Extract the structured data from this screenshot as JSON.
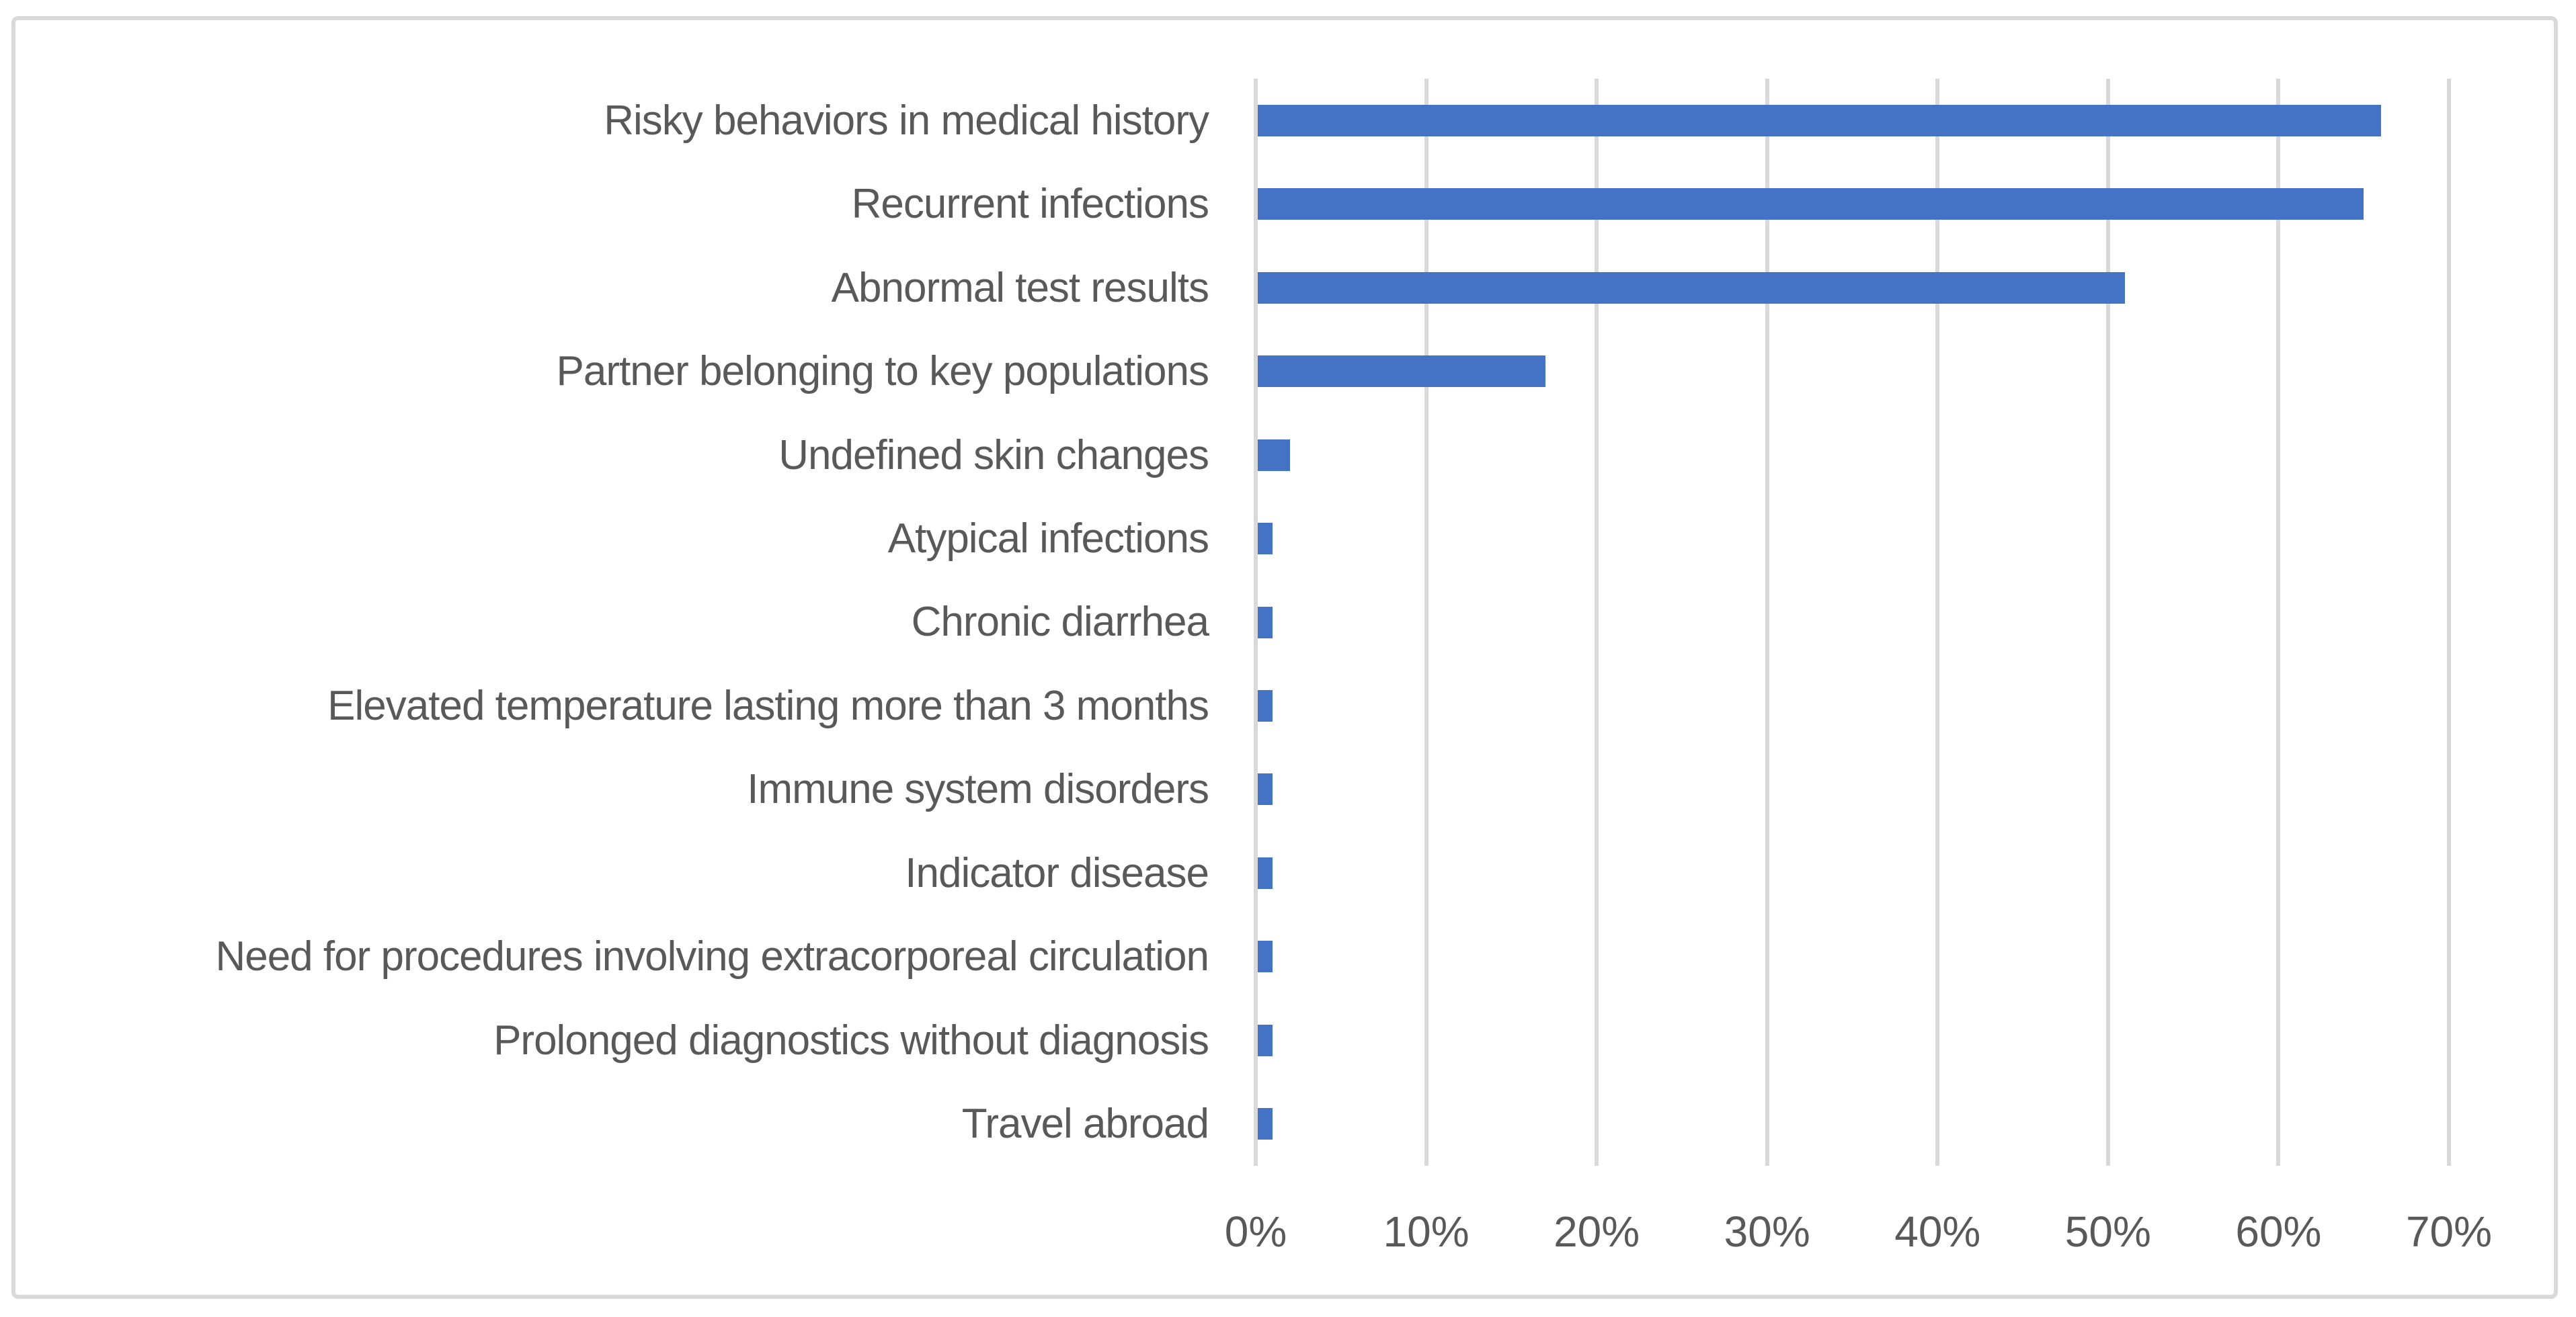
{
  "chart_data": {
    "type": "bar",
    "orientation": "horizontal",
    "title": "",
    "xlabel": "",
    "ylabel": "",
    "categories": [
      "Risky behaviors in medical history",
      "Recurrent infections",
      "Abnormal test results",
      "Partner belonging to key populations",
      "Undefined skin changes",
      "Atypical infections",
      "Chronic diarrhea",
      "Elevated temperature lasting more than 3 months",
      "Immune system disorders",
      "Indicator disease",
      "Need for procedures involving extracorporeal circulation",
      "Prolonged diagnostics without diagnosis",
      "Travel abroad"
    ],
    "values": [
      66,
      65,
      51,
      17,
      2,
      1,
      1,
      1,
      1,
      1,
      1,
      1,
      1
    ],
    "unit": "%",
    "x_ticks": [
      "0%",
      "10%",
      "20%",
      "30%",
      "40%",
      "50%",
      "60%",
      "70%"
    ],
    "x_tick_values": [
      0,
      10,
      20,
      30,
      40,
      50,
      60,
      70
    ],
    "xlim": [
      0,
      76
    ],
    "grid": "vertical-major",
    "legend": "none",
    "colors": {
      "bar": "#4472C4",
      "gridline": "#D9D9D9",
      "frame_border": "#D9D9D9",
      "text": "#595959",
      "background": "#FFFFFF"
    }
  }
}
